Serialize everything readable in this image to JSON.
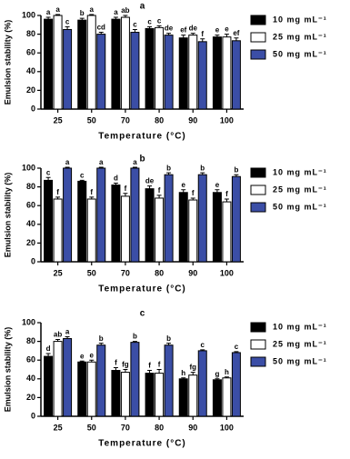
{
  "chart_data": [
    {
      "type": "bar",
      "title": "a",
      "xlabel": "Temperature (°C)",
      "ylabel": "Emulsion stability (%)",
      "categories": [
        "25",
        "50",
        "70",
        "80",
        "90",
        "100"
      ],
      "series": [
        {
          "name": "10 mg mL⁻¹",
          "color": "#000000",
          "values": [
            96,
            95,
            96,
            86,
            76,
            77
          ],
          "errors": [
            2,
            2,
            2,
            2,
            3,
            2
          ],
          "letters": [
            "a",
            "b",
            "a",
            "c",
            "ef",
            "e"
          ]
        },
        {
          "name": "25 mg mL⁻¹",
          "color": "#ffffff",
          "values": [
            100,
            100,
            98,
            87,
            79,
            77
          ],
          "errors": [
            1,
            1,
            2,
            2,
            2,
            3
          ],
          "letters": [
            "a",
            "a",
            "ab",
            "c",
            "de",
            "e"
          ]
        },
        {
          "name": "50 mg mL⁻¹",
          "color": "#3b4ea6",
          "values": [
            85,
            80,
            82,
            79,
            72,
            73
          ],
          "errors": [
            3,
            2,
            3,
            2,
            3,
            3
          ],
          "letters": [
            "c",
            "cd",
            "c",
            "de",
            "f",
            "ef"
          ]
        }
      ],
      "ylim": [
        0,
        100
      ],
      "yticks": [
        0,
        20,
        40,
        60,
        80,
        100
      ]
    },
    {
      "type": "bar",
      "title": "b",
      "xlabel": "Temperature (°C)",
      "ylabel": "Emulsion stability (%)",
      "categories": [
        "25",
        "50",
        "70",
        "80",
        "90",
        "100"
      ],
      "series": [
        {
          "name": "10 mg mL⁻¹",
          "color": "#000000",
          "values": [
            87,
            86,
            82,
            78,
            74,
            74
          ],
          "errors": [
            3,
            1,
            2,
            3,
            3,
            3
          ],
          "letters": [
            "c",
            "c",
            "d",
            "de",
            "e",
            "e"
          ]
        },
        {
          "name": "25 mg mL⁻¹",
          "color": "#ffffff",
          "values": [
            67,
            67,
            70,
            68,
            66,
            64
          ],
          "errors": [
            2,
            2,
            3,
            3,
            2,
            3
          ],
          "letters": [
            "f",
            "f",
            "f",
            "f",
            "f",
            "f"
          ]
        },
        {
          "name": "50 mg mL⁻¹",
          "color": "#3b4ea6",
          "values": [
            100,
            100,
            100,
            93,
            93,
            91
          ],
          "errors": [
            1,
            1,
            1,
            2,
            2,
            2
          ],
          "letters": [
            "a",
            "a",
            "a",
            "b",
            "b",
            "b"
          ]
        }
      ],
      "ylim": [
        0,
        100
      ],
      "yticks": [
        0,
        20,
        40,
        60,
        80,
        100
      ]
    },
    {
      "type": "bar",
      "title": "c",
      "xlabel": "Temperature (°C)",
      "ylabel": "Emulsion stability (%)",
      "categories": [
        "25",
        "50",
        "70",
        "80",
        "90",
        "100"
      ],
      "series": [
        {
          "name": "10 mg mL⁻¹",
          "color": "#000000",
          "values": [
            64,
            58,
            49,
            46,
            40,
            39
          ],
          "errors": [
            3,
            1,
            3,
            3,
            1,
            1
          ],
          "letters": [
            "d",
            "e",
            "f",
            "f",
            "h",
            "g"
          ]
        },
        {
          "name": "25 mg mL⁻¹",
          "color": "#ffffff",
          "values": [
            80,
            58,
            47,
            46,
            44,
            41
          ],
          "errors": [
            2,
            2,
            3,
            4,
            3,
            1
          ],
          "letters": [
            "ab",
            "e",
            "fg",
            "f",
            "fg",
            "h"
          ]
        },
        {
          "name": "50 mg mL⁻¹",
          "color": "#3b4ea6",
          "values": [
            83,
            76,
            79,
            76,
            70,
            68
          ],
          "errors": [
            2,
            2,
            1,
            2,
            1,
            1
          ],
          "letters": [
            "a",
            "b",
            "b",
            "b",
            "c",
            "c"
          ]
        }
      ],
      "ylim": [
        0,
        100
      ],
      "yticks": [
        0,
        20,
        40,
        60,
        80,
        100
      ]
    }
  ]
}
